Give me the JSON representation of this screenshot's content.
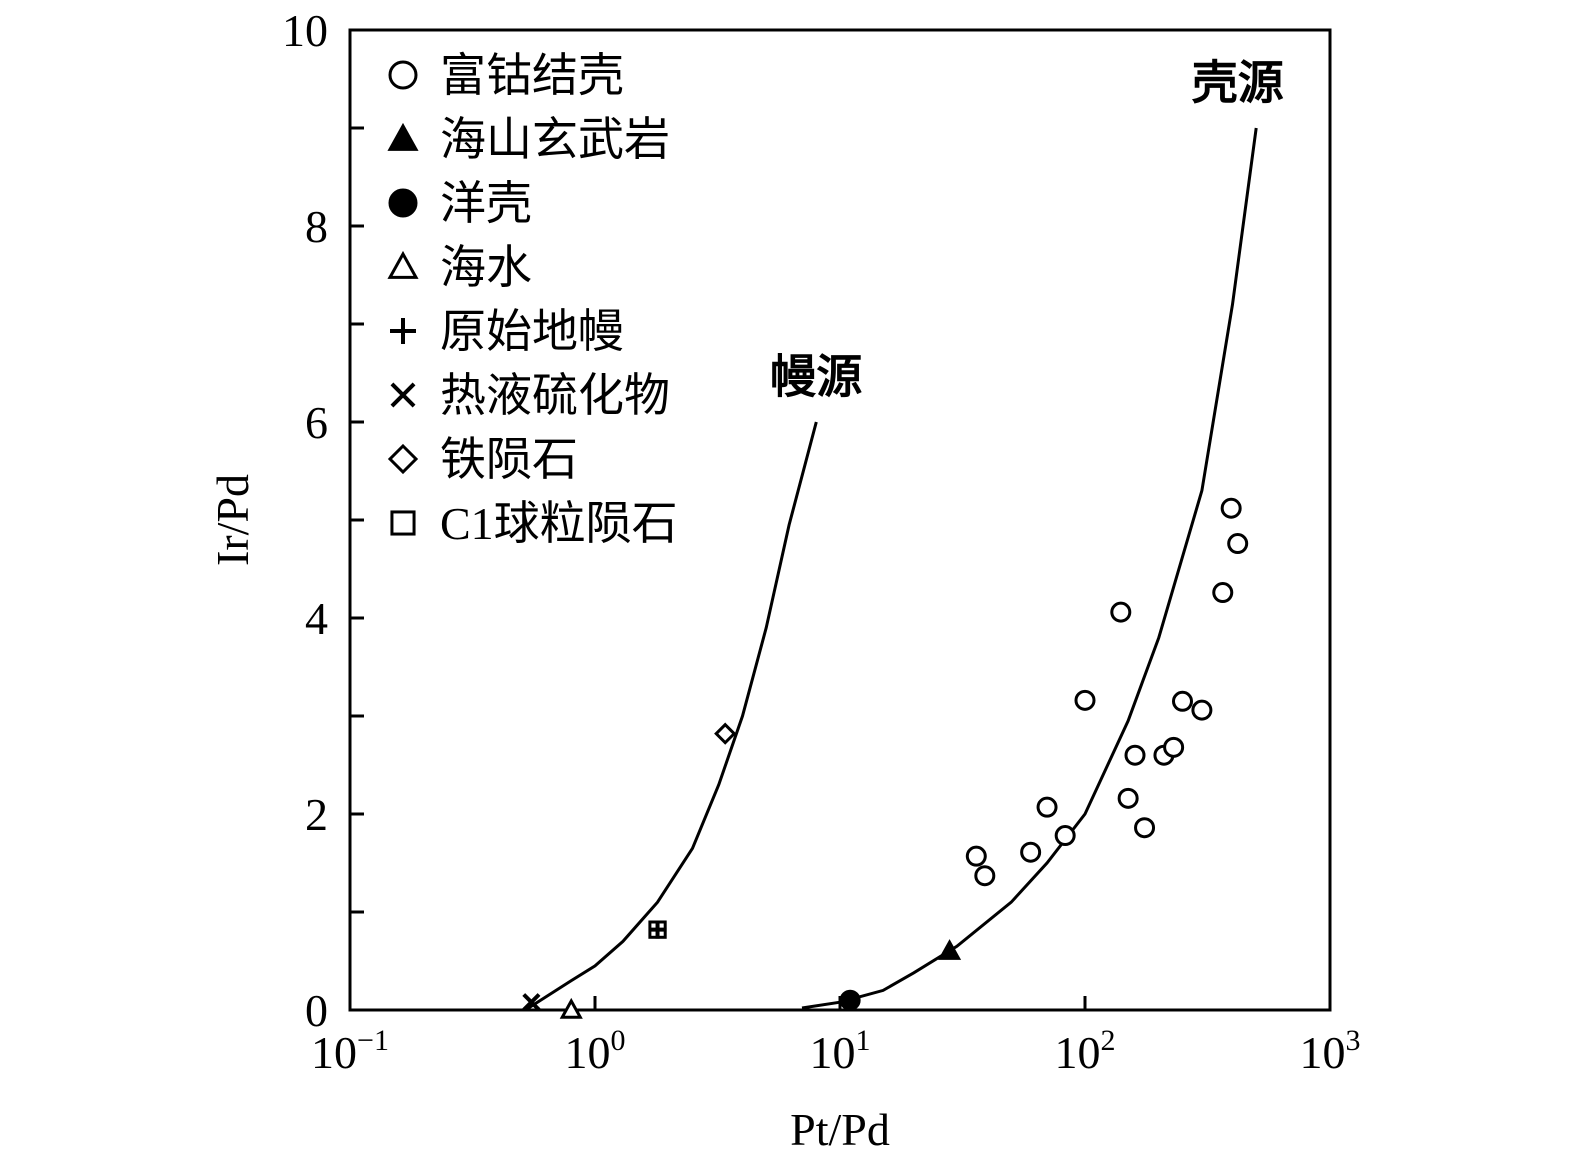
{
  "chart_data": {
    "type": "scatter",
    "xlabel": "Pt/Pd",
    "ylabel": "Ir/Pd",
    "xscale": "log",
    "xlim": [
      0.1,
      1000
    ],
    "ylim": [
      0,
      10
    ],
    "x_ticks": [
      {
        "value": 0.1,
        "base": "10",
        "exp": "−1"
      },
      {
        "value": 1,
        "base": "10",
        "exp": "0"
      },
      {
        "value": 10,
        "base": "10",
        "exp": "1"
      },
      {
        "value": 100,
        "base": "10",
        "exp": "2"
      },
      {
        "value": 1000,
        "base": "10",
        "exp": "3"
      }
    ],
    "y_ticks_major": [
      {
        "value": 0,
        "label": "0"
      },
      {
        "value": 2,
        "label": "2"
      },
      {
        "value": 4,
        "label": "4"
      },
      {
        "value": 6,
        "label": "6"
      },
      {
        "value": 8,
        "label": "8"
      },
      {
        "value": 10,
        "label": "10"
      }
    ],
    "y_ticks_minor": [
      1,
      3,
      5,
      7,
      9
    ],
    "grid": false,
    "legend_position": "top-left",
    "legend": [
      {
        "marker": "open-circle",
        "label": "富钴结壳"
      },
      {
        "marker": "filled-triangle",
        "label": "海山玄武岩"
      },
      {
        "marker": "filled-circle",
        "label": "洋壳"
      },
      {
        "marker": "open-triangle",
        "label": "海水"
      },
      {
        "marker": "plus",
        "label": "原始地幔"
      },
      {
        "marker": "cross",
        "label": "热液硫化物"
      },
      {
        "marker": "open-diamond",
        "label": "铁陨石"
      },
      {
        "marker": "open-square",
        "label": "C1球粒陨石"
      }
    ],
    "series": [
      {
        "name": "富钴结壳",
        "marker": "open-circle",
        "points": [
          [
            36,
            1.57
          ],
          [
            39,
            1.37
          ],
          [
            60,
            1.61
          ],
          [
            70,
            2.07
          ],
          [
            83,
            1.78
          ],
          [
            100,
            3.16
          ],
          [
            140,
            4.06
          ],
          [
            150,
            2.16
          ],
          [
            160,
            2.6
          ],
          [
            175,
            1.86
          ],
          [
            210,
            2.6
          ],
          [
            230,
            2.68
          ],
          [
            250,
            3.15
          ],
          [
            300,
            3.06
          ],
          [
            365,
            4.26
          ],
          [
            395,
            5.12
          ],
          [
            420,
            4.76
          ]
        ]
      },
      {
        "name": "海山玄武岩",
        "marker": "filled-triangle",
        "points": [
          [
            28,
            0.6
          ]
        ]
      },
      {
        "name": "洋壳",
        "marker": "filled-circle",
        "points": [
          [
            11,
            0.1
          ]
        ]
      },
      {
        "name": "海水",
        "marker": "open-triangle",
        "points": [
          [
            0.8,
            0.0
          ]
        ]
      },
      {
        "name": "原始地幔",
        "marker": "plus",
        "points": [
          [
            1.8,
            0.82
          ]
        ]
      },
      {
        "name": "热液硫化物",
        "marker": "cross",
        "points": [
          [
            0.55,
            0.08
          ]
        ]
      },
      {
        "name": "铁陨石",
        "marker": "open-diamond",
        "points": [
          [
            3.4,
            2.82
          ]
        ]
      },
      {
        "name": "C1球粒陨石",
        "marker": "open-square",
        "points": [
          [
            1.8,
            0.82
          ]
        ]
      }
    ],
    "curves": [
      {
        "name": "幔源",
        "points": [
          [
            0.52,
            0.0
          ],
          [
            0.6,
            0.1
          ],
          [
            0.8,
            0.3
          ],
          [
            1.0,
            0.45
          ],
          [
            1.3,
            0.7
          ],
          [
            1.8,
            1.1
          ],
          [
            2.5,
            1.65
          ],
          [
            3.2,
            2.3
          ],
          [
            4.0,
            3.0
          ],
          [
            5.0,
            3.9
          ],
          [
            6.2,
            4.95
          ],
          [
            8.0,
            6.0
          ]
        ]
      },
      {
        "name": "壳源",
        "points": [
          [
            7.0,
            0.02
          ],
          [
            10,
            0.08
          ],
          [
            15,
            0.2
          ],
          [
            20,
            0.38
          ],
          [
            30,
            0.65
          ],
          [
            50,
            1.1
          ],
          [
            70,
            1.5
          ],
          [
            100,
            2.0
          ],
          [
            150,
            2.95
          ],
          [
            200,
            3.8
          ],
          [
            300,
            5.3
          ],
          [
            400,
            7.2
          ],
          [
            500,
            9.0
          ]
        ]
      }
    ],
    "annotations": [
      {
        "text": "幔源",
        "x": 8.0,
        "y": 6.3
      },
      {
        "text": "壳源",
        "x": 420,
        "y": 9.3
      }
    ]
  }
}
